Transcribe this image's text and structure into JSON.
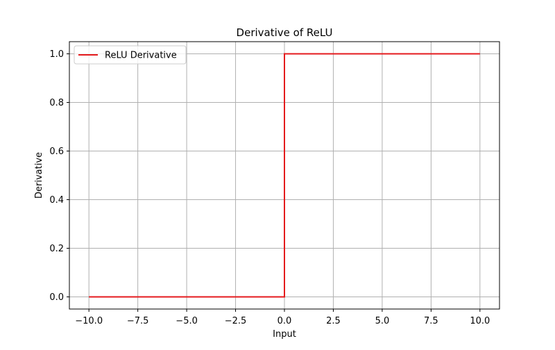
{
  "chart_data": {
    "type": "line",
    "title": "Derivative of ReLU",
    "xlabel": "Input",
    "ylabel": "Derivative",
    "xlim": [
      -11.0,
      11.0
    ],
    "ylim": [
      -0.05,
      1.05
    ],
    "xticks": [
      -10.0,
      -7.5,
      -5.0,
      -2.5,
      0.0,
      2.5,
      5.0,
      7.5,
      10.0
    ],
    "xtick_labels": [
      "−10.0",
      "−7.5",
      "−5.0",
      "−2.5",
      "0.0",
      "2.5",
      "5.0",
      "7.5",
      "10.0"
    ],
    "yticks": [
      0.0,
      0.2,
      0.4,
      0.6,
      0.8,
      1.0
    ],
    "ytick_labels": [
      "0.0",
      "0.2",
      "0.4",
      "0.6",
      "0.8",
      "1.0"
    ],
    "grid": true,
    "legend": {
      "position": "upper-left"
    },
    "series": [
      {
        "name": "ReLU Derivative",
        "color": "#e41a1c",
        "x": [
          -10.0,
          0.0,
          0.0,
          10.0
        ],
        "y": [
          0.0,
          0.0,
          1.0,
          1.0
        ]
      }
    ]
  }
}
